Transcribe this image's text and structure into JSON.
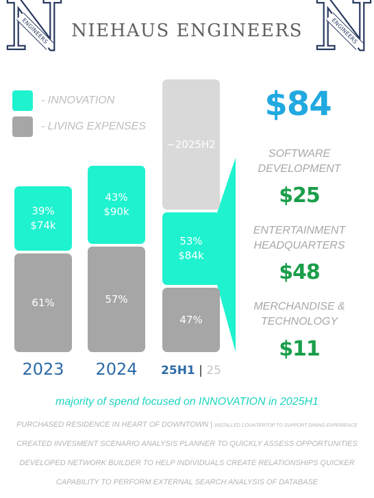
{
  "header": {
    "title": "NIEHAUS ENGINEERS",
    "logo_letter": "N",
    "logo_ribbon": "ENGINEERS"
  },
  "colors": {
    "innovation": "#1ff2cf",
    "living": "#a6a6a6",
    "projected": "#d9d9d9",
    "year": "#2c6aa7",
    "total": "#21a9e0",
    "amount": "#1a9e4a"
  },
  "chart_data": {
    "type": "bar",
    "stacked": true,
    "legend": [
      {
        "name": "- INNOVATION",
        "color": "#1ff2cf"
      },
      {
        "name": "- LIVING EXPENSES",
        "color": "#a6a6a6"
      }
    ],
    "categories": [
      "2023",
      "2024",
      "25H1"
    ],
    "last_category_suffix": "25",
    "series": [
      {
        "name": "- INNOVATION",
        "percent": [
          39,
          43,
          53
        ],
        "values_k": [
          74,
          90,
          84
        ],
        "labels": [
          "39%\n$74k",
          "43%\n$90k",
          "53%\n$84k"
        ]
      },
      {
        "name": "- LIVING EXPENSES",
        "percent": [
          61,
          57,
          47
        ],
        "labels": [
          "61%",
          "57%",
          "47%"
        ]
      }
    ],
    "projected_label": "~2025H2",
    "callout": {
      "total": "$84",
      "breakdown": [
        {
          "label": "SOFTWARE DEVELOPMENT",
          "value": "$25"
        },
        {
          "label": "ENTERTAINMENT HEADQUARTERS",
          "value": "$48"
        },
        {
          "label": "MERCHANDISE & TECHNOLOGY",
          "value": "$11"
        }
      ]
    }
  },
  "summary": "majority of spend focused on INNOVATION in 2025H1",
  "notes": {
    "line1_main": "PURCHASED RESIDENCE IN HEART OF DOWNTOWN | ",
    "line1_small": "INSTALLED COUNTERTOP TO SUPPORT DINING EXPERIENCE",
    "line2": "CREATED INVESMENT SCENARIO ANALYSIS PLANNER TO QUICKLY ASSESS OPPORTUNITIES",
    "line3": "DEVELOPED NETWORK BUILDER TO  HELP INDIVIDUALS CREATE RELATIONSHIPS QUICKER",
    "line4": "CAPABILITY TO PERFORM EXTERNAL SEARCH ANALYSIS OF DATABASE"
  }
}
